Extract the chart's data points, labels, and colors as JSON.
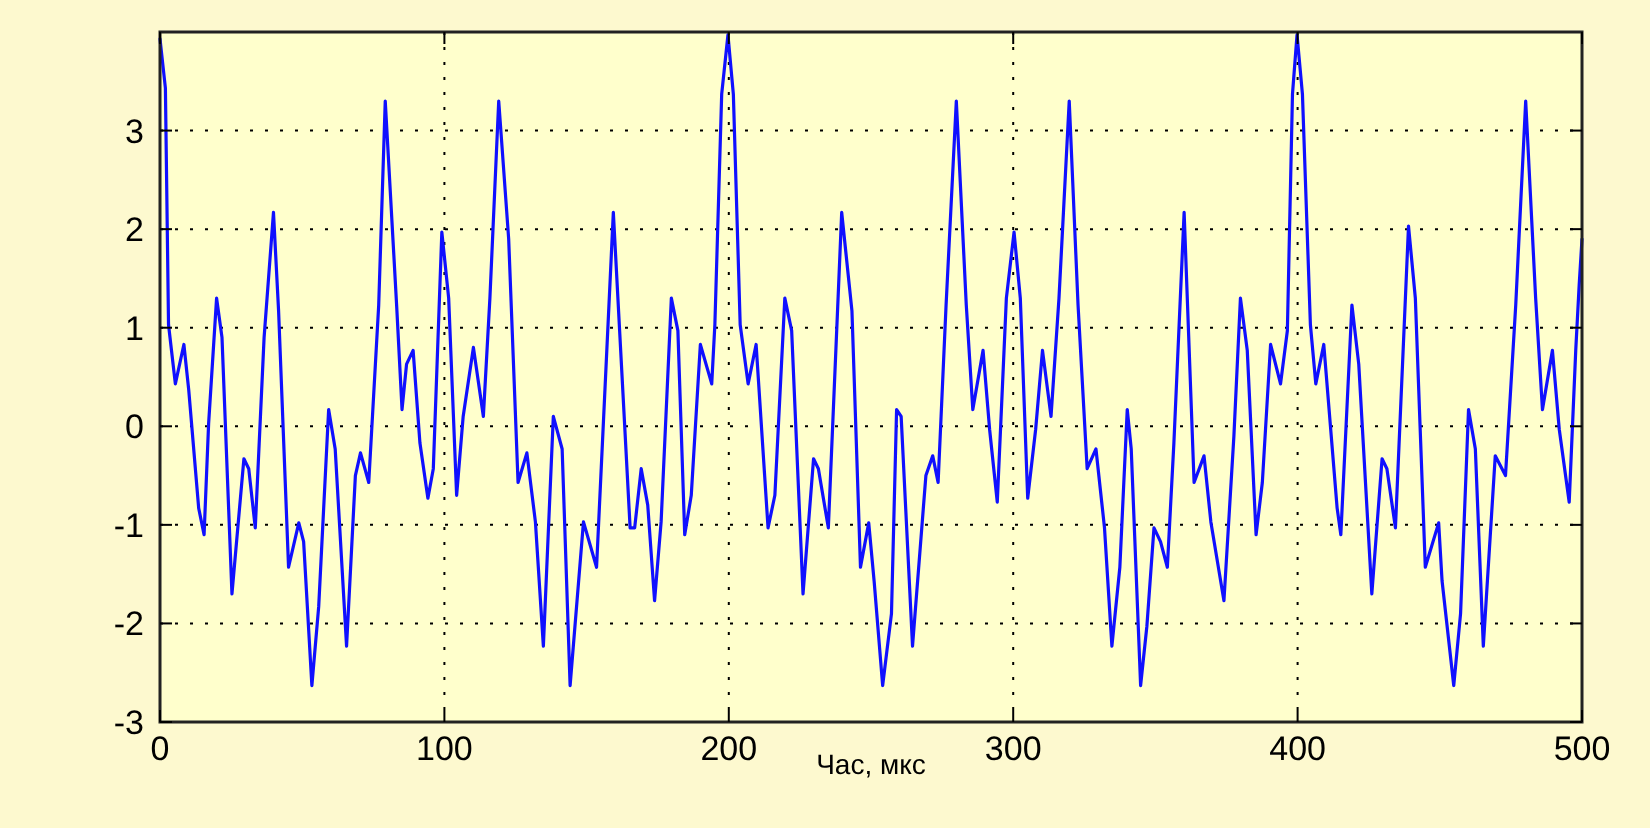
{
  "chart_data": {
    "type": "line",
    "xlabel": "Час, мкс",
    "xlim": [
      0,
      500
    ],
    "xticks": [
      0,
      100,
      200,
      300,
      400,
      500
    ],
    "ylim": [
      -3,
      4
    ],
    "yticks": [
      -3,
      -2,
      -1,
      0,
      1,
      2,
      3
    ],
    "grid": true,
    "marker": "none",
    "line_style": "solid",
    "series": [
      {
        "color": "#1010ff",
        "x": [
          0,
          1.9,
          3.0,
          5.4,
          8.4,
          10.1,
          13.6,
          15.5,
          17.1,
          19.9,
          21.8,
          25.3,
          29.5,
          31.2,
          33.5,
          36.6,
          39.9,
          41.7,
          45.2,
          48.8,
          50.5,
          53.4,
          55.8,
          59.3,
          61.6,
          65.6,
          68.7,
          70.5,
          73.4,
          76.9,
          79.2,
          83.2,
          85.1,
          86.7,
          89.0,
          91.4,
          94.2,
          96.1,
          99.1,
          101.5,
          104.3,
          106.6,
          110.2,
          113.7,
          116.0,
          119.1,
          122.6,
          125.9,
          129.0,
          132.0,
          134.8,
          138.3,
          141.4,
          144.2,
          148.9,
          153.5,
          159.4,
          165.3,
          166.9,
          169.2,
          171.5,
          173.9,
          176.2,
          179.8,
          182.1,
          184.5,
          186.8,
          190.0,
          194.0,
          195.1,
          197.5,
          199.7,
          201.6,
          204.0,
          206.8,
          209.6,
          213.8,
          216.2,
          219.7,
          222.1,
          226.1,
          229.8,
          231.5,
          235.0,
          239.7,
          243.3,
          246.3,
          249.2,
          251.1,
          254.1,
          257.2,
          259.0,
          260.6,
          264.6,
          269.3,
          271.7,
          273.6,
          276.4,
          280.0,
          283.5,
          285.8,
          289.4,
          291.7,
          294.4,
          297.6,
          300.3,
          302.5,
          305.1,
          307.9,
          310.3,
          313.3,
          316.1,
          319.7,
          322.8,
          326.0,
          329.1,
          332.1,
          334.7,
          337.5,
          340.1,
          341.5,
          344.8,
          347.0,
          349.5,
          351.8,
          354.2,
          356.5,
          360.1,
          363.6,
          367.1,
          369.5,
          374.1,
          377.6,
          379.9,
          382.3,
          385.4,
          387.6,
          390.5,
          394.0,
          396.4,
          398.2,
          399.8,
          401.7,
          404.5,
          406.4,
          409.2,
          413.9,
          415.2,
          419.1,
          421.5,
          426.1,
          429.7,
          431.4,
          434.4,
          439.0,
          441.4,
          444.9,
          449.6,
          450.8,
          454.9,
          457.3,
          460.1,
          462.5,
          465.3,
          469.5,
          473.1,
          476.7,
          480.2,
          483.7,
          486.1,
          489.6,
          492.0,
          495.5,
          497.8,
          499.0,
          500
        ],
        "values": [
          3.93,
          3.43,
          1.03,
          0.43,
          0.83,
          0.37,
          -0.83,
          -1.1,
          0.03,
          1.3,
          0.9,
          -1.7,
          -0.33,
          -0.43,
          -1.03,
          0.9,
          2.17,
          1.17,
          -1.43,
          -0.98,
          -1.17,
          -2.63,
          -1.83,
          0.17,
          -0.23,
          -2.23,
          -0.5,
          -0.27,
          -0.57,
          1.23,
          3.3,
          1.23,
          0.17,
          0.63,
          0.77,
          -0.17,
          -0.73,
          -0.43,
          1.97,
          1.3,
          -0.7,
          0.1,
          0.8,
          0.1,
          1.3,
          3.3,
          1.9,
          -0.57,
          -0.27,
          -0.97,
          -2.23,
          0.1,
          -0.23,
          -2.63,
          -0.97,
          -1.43,
          2.17,
          -1.03,
          -1.03,
          -0.43,
          -0.8,
          -1.77,
          -0.97,
          1.3,
          0.97,
          -1.1,
          -0.7,
          0.83,
          0.43,
          1.03,
          3.37,
          3.97,
          3.37,
          1.03,
          0.43,
          0.83,
          -1.03,
          -0.7,
          1.3,
          0.97,
          -1.7,
          -0.33,
          -0.43,
          -1.03,
          2.17,
          1.17,
          -1.43,
          -0.98,
          -1.57,
          -2.63,
          -1.9,
          0.17,
          0.1,
          -2.23,
          -0.5,
          -0.3,
          -0.57,
          1.23,
          3.3,
          1.23,
          0.17,
          0.77,
          -0.03,
          -0.77,
          1.3,
          1.97,
          1.3,
          -0.73,
          -0.03,
          0.77,
          0.1,
          1.3,
          3.3,
          1.23,
          -0.43,
          -0.23,
          -1.03,
          -2.23,
          -1.43,
          0.17,
          -0.23,
          -2.63,
          -2.03,
          -1.03,
          -1.17,
          -1.43,
          -0.17,
          2.17,
          -0.57,
          -0.3,
          -0.97,
          -1.77,
          -0.1,
          1.3,
          0.77,
          -1.1,
          -0.57,
          0.83,
          0.43,
          0.97,
          3.37,
          3.97,
          3.37,
          1.03,
          0.43,
          0.83,
          -0.83,
          -1.1,
          1.23,
          0.63,
          -1.7,
          -0.33,
          -0.43,
          -1.03,
          2.03,
          1.3,
          -1.43,
          -0.98,
          -1.57,
          -2.63,
          -1.9,
          0.17,
          -0.23,
          -2.23,
          -0.3,
          -0.5,
          1.23,
          3.3,
          1.3,
          0.17,
          0.77,
          -0.03,
          -0.77,
          0.77,
          1.43,
          1.9
        ]
      }
    ]
  }
}
